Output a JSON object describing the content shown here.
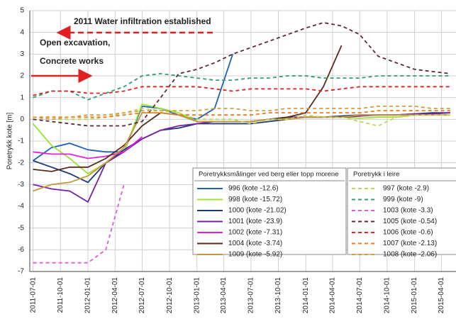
{
  "chart_data": {
    "type": "line",
    "y_label": "Poretrykk kote [m]",
    "annotations": [
      "2011 Water infiltration established",
      "Open excavation,",
      "Concrete works"
    ],
    "legend_titles": [
      "Poretrykksmålinger ved berg eller topp morene",
      "Poretrykk i leire"
    ],
    "x": [
      "2011-07-01",
      "2011-09-01",
      "2011-11-01",
      "2012-01-01",
      "2012-03-01",
      "2012-05-01",
      "2012-07-01",
      "2012-09-01",
      "2012-11-01",
      "2013-01-01",
      "2013-03-01",
      "2013-05-01",
      "2013-07-01",
      "2013-09-01",
      "2013-11-01",
      "2014-01-01",
      "2014-03-01",
      "2014-05-01",
      "2014-07-01",
      "2014-09-01",
      "2014-11-01",
      "2015-01-01",
      "2015-03-01",
      "2015-05-01"
    ],
    "xlim": [
      "2011-06-20",
      "2015-05-20"
    ],
    "xticks": [
      "2011-07-01",
      "2011-10-01",
      "2012-01-01",
      "2012-04-01",
      "2012-07-01",
      "2012-10-01",
      "2013-01-01",
      "2013-04-01",
      "2013-07-01",
      "2013-10-01",
      "2014-01-01",
      "2014-04-01",
      "2014-07-01",
      "2014-10-01",
      "2015-01-01",
      "2015-04-01"
    ],
    "ylim": [
      -7,
      5
    ],
    "yticks": [
      -7,
      -6,
      -5,
      -4,
      -3,
      -2,
      -1,
      0,
      1,
      2,
      3,
      4,
      5
    ],
    "grid": true,
    "series": [
      {
        "name": "996 (kote -12.6)",
        "color": "#1f5fbf",
        "line_style": "solid",
        "values": [
          -1.9,
          -1.3,
          -1.1,
          -1.4,
          -1.5,
          -1.5,
          0.6,
          0.5,
          0.2,
          0,
          0.5,
          3.0,
          null,
          null,
          null,
          null,
          null,
          null,
          null,
          null,
          null,
          null,
          null,
          null
        ]
      },
      {
        "name": "998 (kote -15.72)",
        "color": "#9be233",
        "line_style": "solid",
        "values": [
          -0.2,
          -1.2,
          -1.8,
          -2.5,
          -2.0,
          -1.5,
          0.7,
          0.5,
          0.3,
          -0.1,
          -0.1,
          -0.1,
          -0.1,
          0,
          0.05,
          0.1,
          0.1,
          0.1,
          0.05,
          0.1,
          0.1,
          0.2,
          0.2,
          0.2
        ]
      },
      {
        "name": "1000 (kote -21.02)",
        "color": "#1a3a7a",
        "line_style": "solid",
        "values": [
          -1.9,
          -2.2,
          -2.5,
          -2.9,
          -2.0,
          -1.4,
          -0.9,
          -0.5,
          -0.4,
          -0.2,
          -0.2,
          -0.2,
          -0.2,
          -0.1,
          0,
          0.1,
          0.1,
          0.15,
          0.2,
          0.2,
          0.2,
          0.25,
          0.3,
          0.3
        ]
      },
      {
        "name": "1001 (kote -23.9)",
        "color": "#7a1fa2",
        "line_style": "solid",
        "values": [
          -3.0,
          -3.2,
          -3.3,
          -3.8,
          -2.0,
          -1.5,
          -0.9,
          -0.5,
          -0.3,
          -0.2,
          -0.1,
          -0.1,
          -0.1,
          0,
          0.1,
          0.1,
          0.1,
          0.1,
          0.15,
          0.2,
          0.2,
          0.25,
          0.25,
          0.3
        ]
      },
      {
        "name": "1002 (kote -7.31)",
        "color": "#e020e0",
        "line_style": "solid",
        "values": [
          -1.5,
          -1.6,
          -1.6,
          -1.8,
          -1.7,
          -1.5,
          -0.8,
          null,
          null,
          null,
          null,
          null,
          null,
          null,
          null,
          null,
          null,
          null,
          null,
          null,
          null,
          null,
          null,
          null
        ]
      },
      {
        "name": "1004 (kote -3.74)",
        "color": "#5a2a1a",
        "line_style": "solid",
        "values": [
          -2.3,
          -2.4,
          -2.2,
          -2.2,
          -1.8,
          -1.2,
          -0.3,
          0.3,
          0.2,
          -0.1,
          -0.1,
          -0.1,
          -0.1,
          0,
          0.1,
          0.3,
          1.5,
          3.4,
          null,
          null,
          null,
          null,
          null,
          null
        ]
      },
      {
        "name": "1009 (kote -5.92)",
        "color": "#c8963c",
        "line_style": "solid",
        "values": [
          -3.3,
          -3.0,
          -2.9,
          -2.6,
          -2.0,
          -1.3,
          0.3,
          0.3,
          0.2,
          -0.1,
          -0.1,
          -0.1,
          -0.1,
          0,
          0,
          0.1,
          0.1,
          0.1,
          0.2,
          0.2,
          0.2,
          0.2,
          0.2,
          0.2
        ]
      },
      {
        "name": "997 (kote -2.9)",
        "color": "#b8d85a",
        "line_style": "dashed",
        "values": [
          0.1,
          0,
          0,
          0,
          0.1,
          0.3,
          0.5,
          0.4,
          0.3,
          0,
          0,
          0,
          -0.2,
          0,
          0,
          0.2,
          0.1,
          0.1,
          -0.1,
          -0.3,
          0.1,
          0.2,
          0.2,
          0.2
        ]
      },
      {
        "name": "999 (kote -9)",
        "color": "#2e9b7a",
        "line_style": "dashed",
        "values": [
          1.0,
          1.3,
          1.3,
          0.9,
          1.2,
          1.5,
          2.0,
          2.1,
          2.0,
          1.9,
          1.8,
          1.8,
          1.9,
          1.9,
          2.0,
          2.0,
          1.9,
          1.9,
          1.9,
          2.0,
          2.0,
          2.0,
          2.0,
          2.0
        ]
      },
      {
        "name": "1003 (kote -3.3)",
        "color": "#e05ae0",
        "line_style": "dashed",
        "values": [
          -6.6,
          -6.6,
          -6.6,
          -6.6,
          -6.0,
          -3.0,
          null,
          null,
          null,
          null,
          null,
          null,
          null,
          null,
          null,
          null,
          null,
          null,
          null,
          null,
          null,
          null,
          null,
          null
        ]
      },
      {
        "name": "1005 (kote -0.54)",
        "color": "#5a2a3a",
        "line_style": "dashed",
        "values": [
          0,
          -0.1,
          -0.2,
          -0.3,
          -0.3,
          -0.3,
          -0.1,
          1.0,
          2.1,
          2.3,
          2.6,
          3.0,
          3.3,
          3.6,
          3.9,
          4.2,
          4.45,
          4.3,
          3.9,
          2.9,
          2.6,
          2.3,
          2.2,
          2.1
        ]
      },
      {
        "name": "1006 (kote -0.6)",
        "color": "#e02020",
        "line_style": "dashed",
        "values": [
          1.1,
          1.3,
          1.3,
          1.2,
          1.2,
          1.3,
          1.5,
          1.5,
          1.5,
          1.5,
          1.4,
          1.3,
          1.4,
          1.4,
          1.4,
          1.4,
          1.3,
          1.4,
          1.5,
          1.5,
          1.5,
          1.5,
          1.5,
          1.5
        ]
      },
      {
        "name": "1007 (kote -2.13)",
        "color": "#f07820",
        "line_style": "dashed",
        "values": [
          0.1,
          0.1,
          0.1,
          0.1,
          0.1,
          0.2,
          0.3,
          0.3,
          0.2,
          0.2,
          0.2,
          0.2,
          0.2,
          0.3,
          0.3,
          0.3,
          0.3,
          0.3,
          0.3,
          0.4,
          0.4,
          0.4,
          0.4,
          0.4
        ]
      },
      {
        "name": "1008 (kote -2.06)",
        "color": "#d0a040",
        "line_style": "dashed",
        "values": [
          0.1,
          0,
          0.1,
          0.2,
          0.2,
          0.3,
          0.4,
          0.4,
          0.4,
          0.4,
          0.5,
          0.5,
          0.4,
          0.4,
          0.5,
          0.5,
          0.5,
          0.5,
          0.5,
          0.6,
          0.6,
          0.6,
          0.5,
          0.5
        ]
      }
    ]
  }
}
